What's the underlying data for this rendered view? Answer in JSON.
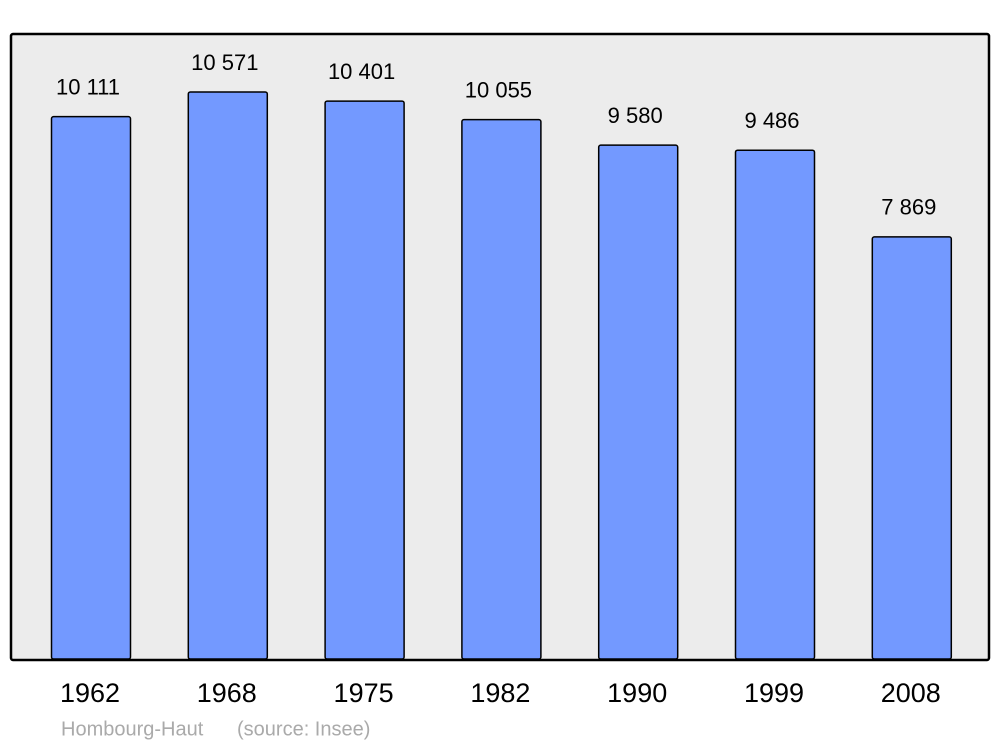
{
  "chart_data": {
    "type": "bar",
    "categories": [
      "1962",
      "1968",
      "1975",
      "1982",
      "1990",
      "1999",
      "2008"
    ],
    "values": [
      10111,
      10571,
      10401,
      10055,
      9580,
      9486,
      7869
    ],
    "value_labels": [
      "10 111",
      "10 571",
      "10 401",
      "10 055",
      "9 580",
      "9 486",
      "7 869"
    ],
    "color": "#7399ff",
    "caption": "Hombourg-Haut",
    "source": "(source: Insee)"
  }
}
